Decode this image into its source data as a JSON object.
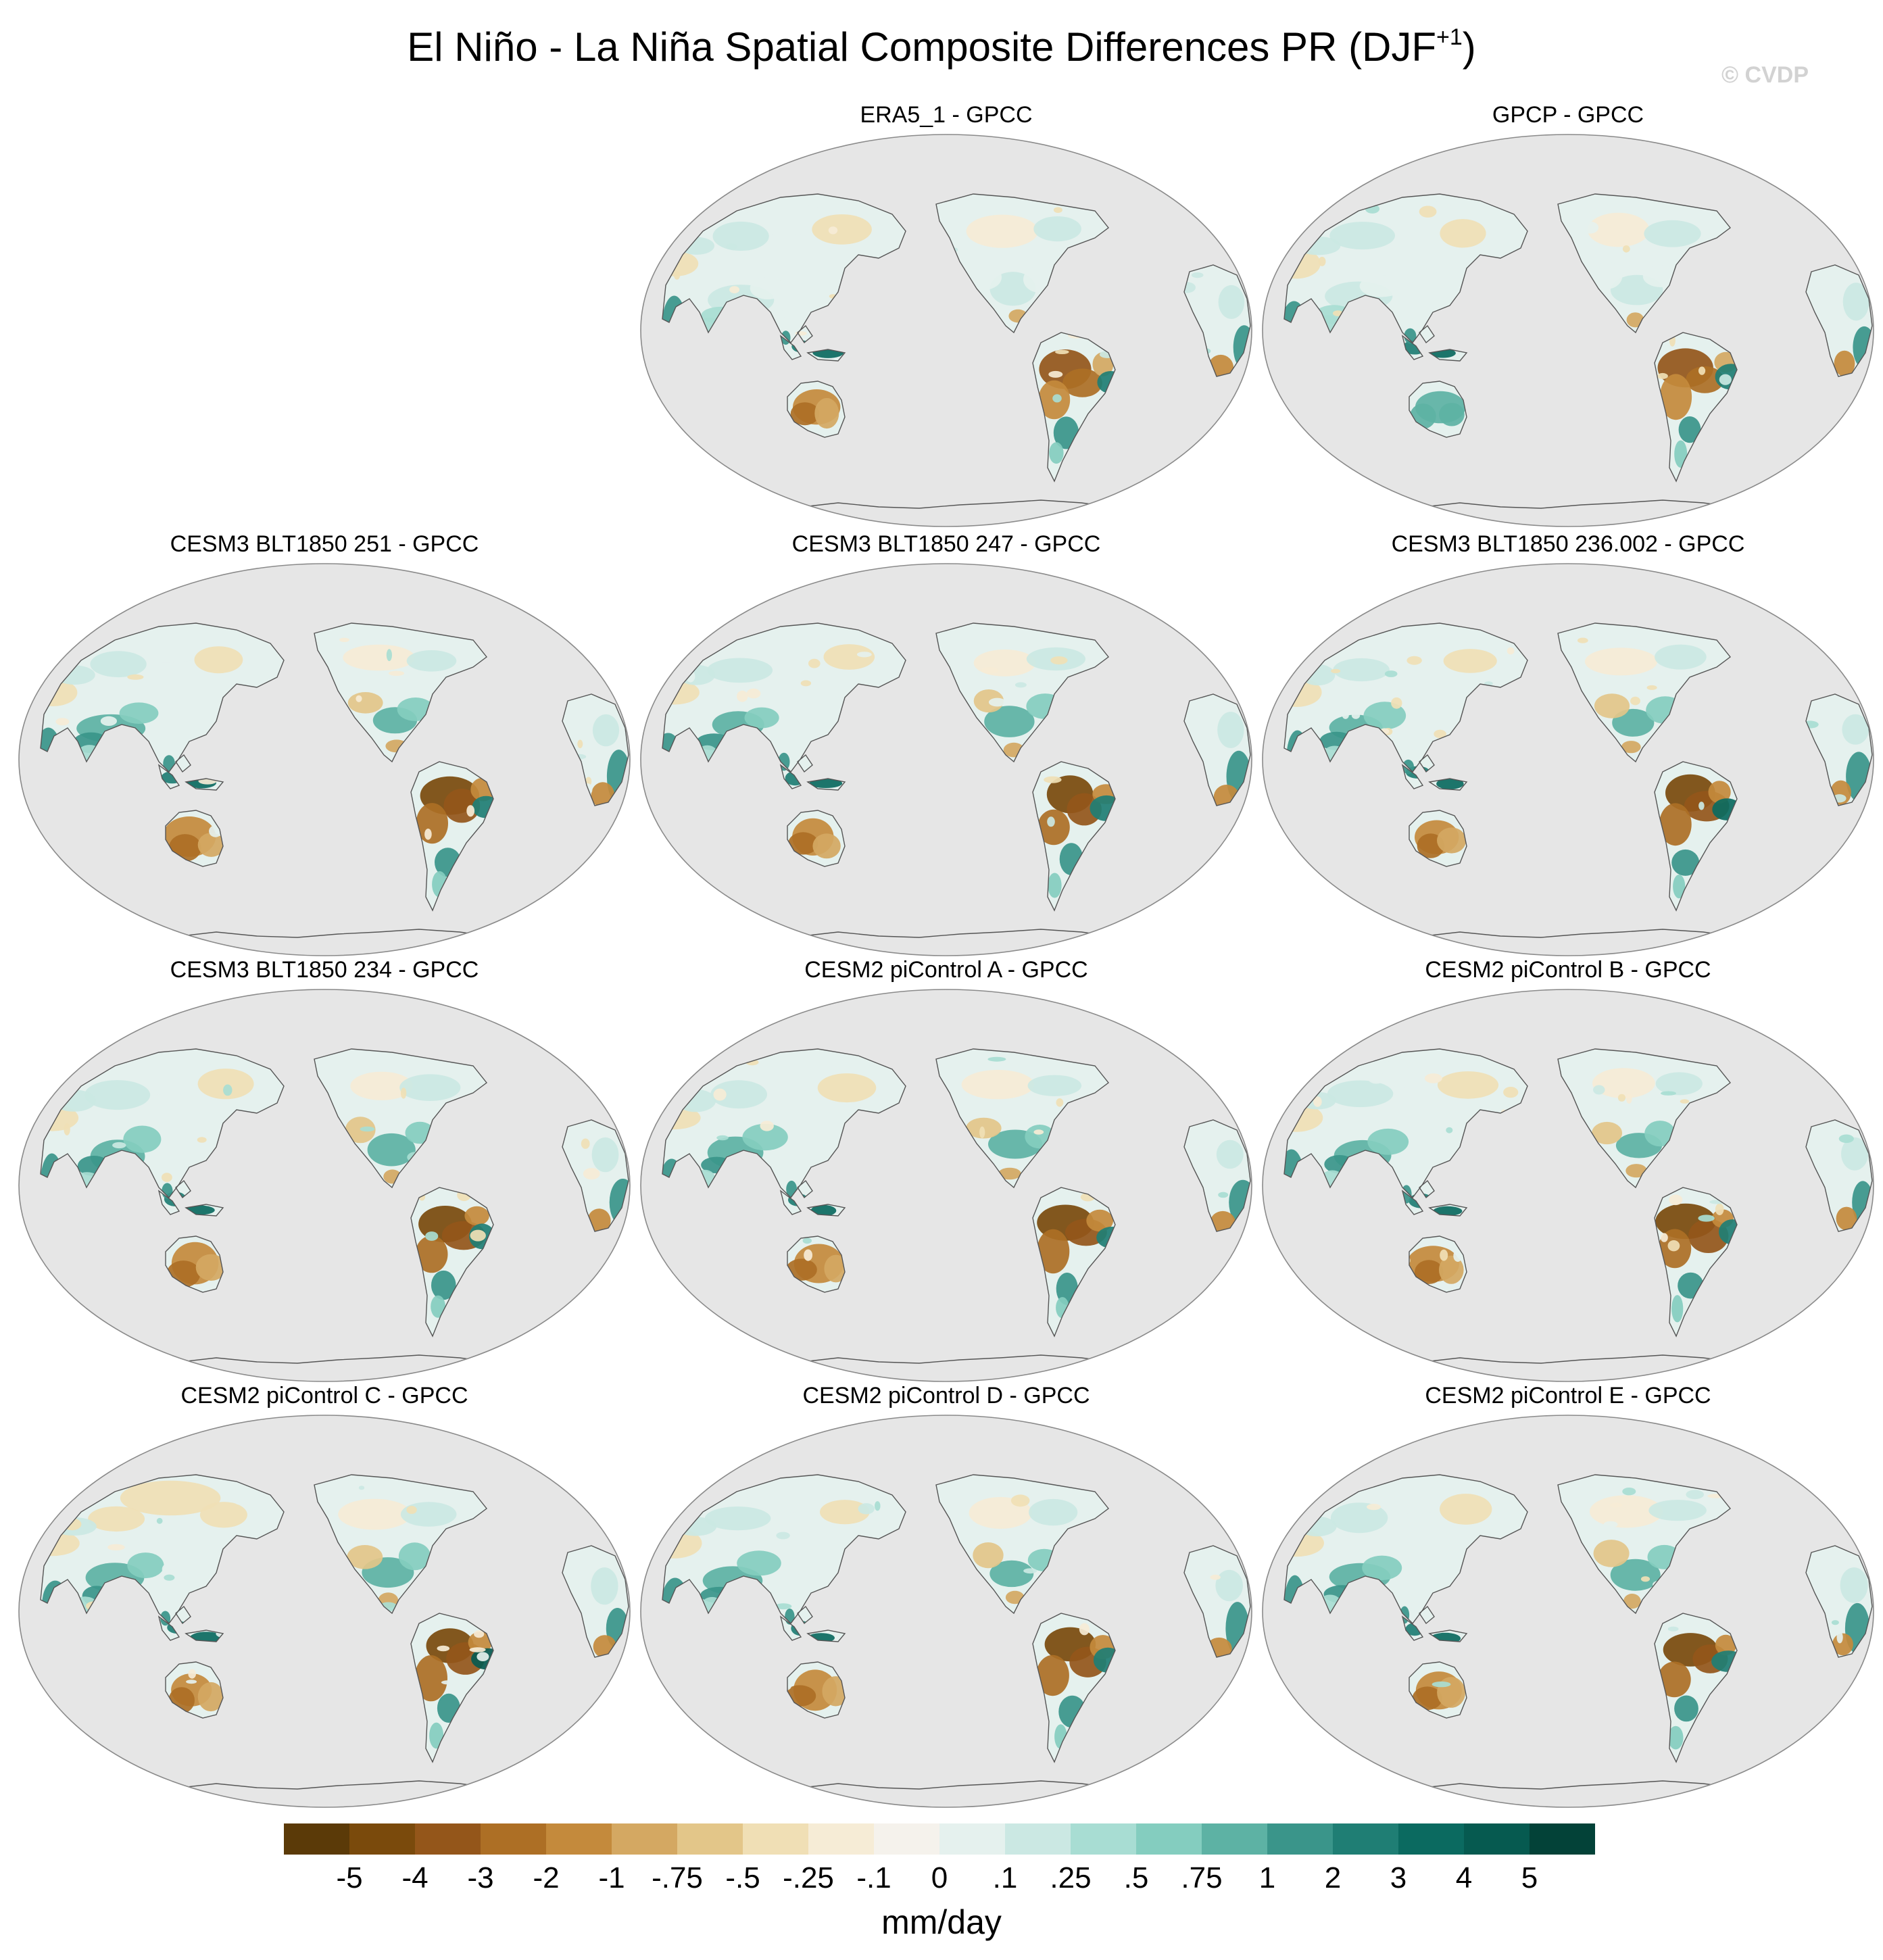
{
  "title": "El Niño - La Niña Spatial Composite Differences PR (DJF",
  "title_superscript": "+1",
  "title_close": ")",
  "credit": "© CVDP",
  "panels": [
    {
      "title": "ERA5_1 - GPCC",
      "variant": 0
    },
    {
      "title": "GPCP - GPCC",
      "variant": 1
    },
    {
      "title": "CESM3 BLT1850 251 - GPCC",
      "variant": 2
    },
    {
      "title": "CESM3 BLT1850 247 - GPCC",
      "variant": 3
    },
    {
      "title": "CESM3 BLT1850 236.002 - GPCC",
      "variant": 4
    },
    {
      "title": "CESM3 BLT1850 234 - GPCC",
      "variant": 5
    },
    {
      "title": "CESM2 piControl A - GPCC",
      "variant": 6
    },
    {
      "title": "CESM2 piControl B - GPCC",
      "variant": 7
    },
    {
      "title": "CESM2 piControl C - GPCC",
      "variant": 8
    },
    {
      "title": "CESM2 piControl D - GPCC",
      "variant": 9
    },
    {
      "title": "CESM2 piControl E - GPCC",
      "variant": 10
    }
  ],
  "colorbar": {
    "colors": [
      "#5b3a08",
      "#7a4a0c",
      "#94561a",
      "#ad6f25",
      "#c48a3c",
      "#d4a862",
      "#e3c689",
      "#f0dfb5",
      "#f6ecd6",
      "#f5f2ec",
      "#e5f1ee",
      "#cbe8e3",
      "#a8ddd3",
      "#84cdbf",
      "#5db2a4",
      "#3a958a",
      "#1f7e74",
      "#0b6a60",
      "#065a50",
      "#034238"
    ],
    "labels": [
      "-5",
      "-4",
      "-3",
      "-2",
      "-1",
      "-.75",
      "-.5",
      "-.25",
      "-.1",
      "0",
      ".1",
      ".25",
      ".5",
      ".75",
      "1",
      "2",
      "3",
      "4",
      "5"
    ],
    "units": "mm/day"
  },
  "map_style": {
    "ocean": "#e6e6e6",
    "outline": "#8a8a8a",
    "coast": "#555555"
  }
}
